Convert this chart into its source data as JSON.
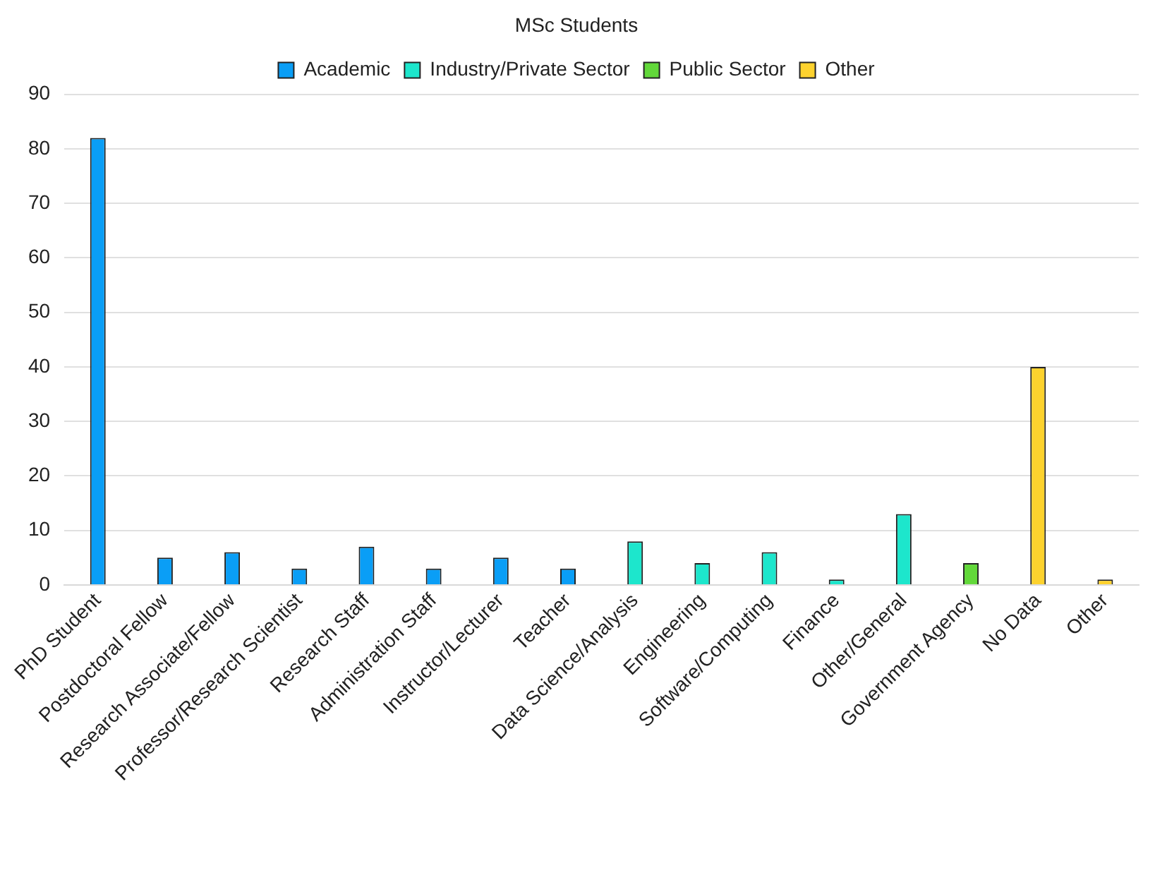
{
  "chart_data": {
    "type": "bar",
    "title": "MSc Students",
    "categories": [
      "PhD Student",
      "Postdoctoral Fellow",
      "Research Associate/Fellow",
      "Professor/Research Scientist",
      "Research Staff",
      "Administration Staff",
      "Instructor/Lecturer",
      "Teacher",
      "Data Science/Analysis",
      "Engineering",
      "Software/Computing",
      "Finance",
      "Other/General",
      "Government Agency",
      "No Data",
      "Other"
    ],
    "series": [
      {
        "name": "Academic",
        "color": "#0a9ef6",
        "values": [
          82,
          5,
          6,
          3,
          7,
          3,
          5,
          3,
          null,
          null,
          null,
          null,
          null,
          null,
          null,
          null
        ]
      },
      {
        "name": "Industry/Private Sector",
        "color": "#1de6cc",
        "values": [
          null,
          null,
          null,
          null,
          null,
          null,
          null,
          null,
          8,
          4,
          6,
          1,
          13,
          null,
          null,
          null
        ]
      },
      {
        "name": "Public Sector",
        "color": "#62d83a",
        "values": [
          null,
          null,
          null,
          null,
          null,
          null,
          null,
          null,
          null,
          null,
          null,
          null,
          null,
          4,
          null,
          null
        ]
      },
      {
        "name": "Other",
        "color": "#fdd22e",
        "values": [
          null,
          null,
          null,
          null,
          null,
          null,
          null,
          null,
          null,
          null,
          null,
          null,
          null,
          null,
          40,
          1
        ]
      }
    ],
    "ylim": [
      0,
      90
    ],
    "yticks": [
      0,
      10,
      20,
      30,
      40,
      50,
      60,
      70,
      80,
      90
    ],
    "grid": "y",
    "legend": "top"
  }
}
